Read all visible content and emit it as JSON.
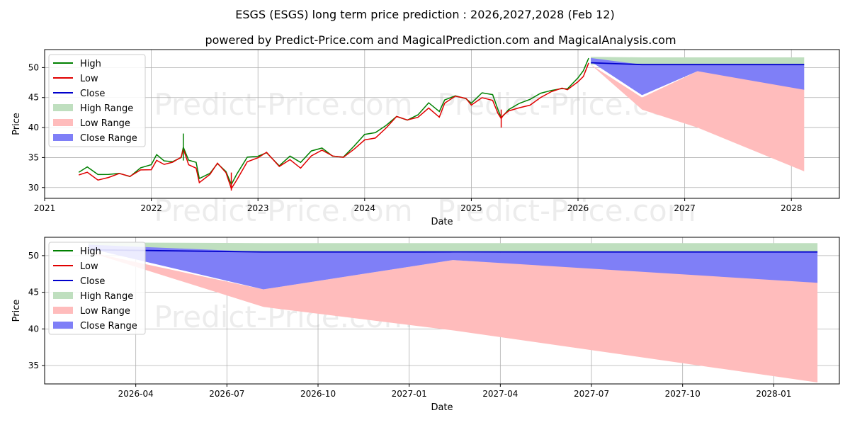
{
  "title": "ESGS (ESGS) long term price prediction : 2026,2027,2028 (Feb 12)",
  "subtitle": "powered by Predict-Price.com and MagicalPrediction.com and MagicalAnalysis.com",
  "watermark": "Predict-Price.com",
  "colors": {
    "high": "#008000",
    "low": "#e00000",
    "close": "#0000cc",
    "high_range": "#bfdfbf",
    "low_range": "#ffbcbc",
    "close_range": "#7f7ff7"
  },
  "legend": [
    "High",
    "Low",
    "Close",
    "High Range",
    "Low Range",
    "Close Range"
  ],
  "chart_data": [
    {
      "type": "line",
      "xlabel": "Date",
      "ylabel": "Price",
      "xlim": [
        2021.0,
        2028.45
      ],
      "ylim": [
        28.2,
        53.0
      ],
      "xticks": [
        2021,
        2022,
        2023,
        2024,
        2025,
        2026,
        2027,
        2028
      ],
      "xtick_labels": [
        "2021",
        "2022",
        "2023",
        "2024",
        "2025",
        "2026",
        "2027",
        "2028"
      ],
      "yticks": [
        30,
        35,
        40,
        45,
        50
      ],
      "ytick_labels": [
        "30",
        "35",
        "40",
        "45",
        "50"
      ],
      "grid": true,
      "legend_position": "top-left",
      "history": {
        "x": [
          2021.32,
          2021.4,
          2021.5,
          2021.6,
          2021.7,
          2021.8,
          2021.9,
          2022.0,
          2022.05,
          2022.12,
          2022.2,
          2022.28,
          2022.3,
          2022.35,
          2022.42,
          2022.45,
          2022.55,
          2022.62,
          2022.7,
          2022.75,
          2022.8,
          2022.9,
          2023.0,
          2023.08,
          2023.2,
          2023.3,
          2023.4,
          2023.5,
          2023.6,
          2023.7,
          2023.8,
          2023.9,
          2024.0,
          2024.1,
          2024.2,
          2024.3,
          2024.4,
          2024.5,
          2024.6,
          2024.7,
          2024.75,
          2024.85,
          2024.95,
          2025.0,
          2025.1,
          2025.2,
          2025.25,
          2025.28,
          2025.3,
          2025.35,
          2025.45,
          2025.55,
          2025.65,
          2025.75,
          2025.85,
          2025.9,
          2026.0,
          2026.05,
          2026.1
        ],
        "close": [
          32.2,
          32.8,
          31.5,
          31.8,
          32.3,
          31.8,
          33.0,
          33.2,
          34.8,
          34.0,
          34.2,
          35.0,
          36.5,
          34.0,
          33.5,
          31.0,
          32.2,
          34.0,
          32.5,
          30.0,
          31.5,
          34.5,
          35.0,
          35.8,
          33.5,
          34.8,
          33.5,
          35.5,
          36.3,
          35.2,
          35.0,
          36.5,
          38.2,
          38.5,
          40.0,
          41.8,
          41.2,
          41.8,
          43.5,
          42.0,
          44.2,
          45.2,
          44.8,
          43.8,
          45.2,
          44.8,
          42.5,
          41.5,
          42.0,
          42.8,
          43.5,
          44.0,
          45.2,
          46.0,
          46.5,
          46.3,
          47.8,
          48.8,
          51.0
        ],
        "high_spikes": [
          [
            2022.3,
            39.0
          ]
        ],
        "low_spikes": [
          [
            2025.28,
            40.0
          ],
          [
            2022.75,
            29.5
          ]
        ]
      },
      "forecast": {
        "x": [
          2026.12,
          2026.6,
          2027.12,
          2028.12
        ],
        "high_range": {
          "upper": [
            51.8,
            51.7,
            51.7,
            51.7
          ],
          "lower": [
            50.5,
            50.5,
            50.5,
            50.5
          ]
        },
        "low_range": {
          "upper": [
            50.5,
            45.0,
            49.4,
            46.5
          ],
          "lower": [
            50.5,
            43.0,
            40.0,
            32.7
          ]
        },
        "close_range": {
          "upper": [
            51.6,
            50.5,
            50.5,
            50.5
          ],
          "lower": [
            51.0,
            45.4,
            49.4,
            46.3
          ]
        },
        "close": [
          50.8,
          50.5,
          50.5,
          50.5
        ]
      }
    },
    {
      "type": "line",
      "xlabel": "Date",
      "ylabel": "Price",
      "xlim": [
        2026.0,
        2028.18
      ],
      "ylim": [
        32.5,
        52.5
      ],
      "xticks": [
        2026.25,
        2026.5,
        2026.75,
        2027.0,
        2027.25,
        2027.5,
        2027.75,
        2028.0
      ],
      "xtick_labels": [
        "2026-04",
        "2026-07",
        "2026-10",
        "2027-01",
        "2027-04",
        "2027-07",
        "2027-10",
        "2028-01"
      ],
      "yticks": [
        35,
        40,
        45,
        50
      ],
      "ytick_labels": [
        "35",
        "40",
        "45",
        "50"
      ],
      "grid": true,
      "legend_position": "top-left",
      "forecast": {
        "x": [
          2026.12,
          2026.6,
          2027.12,
          2028.12
        ],
        "high_range": {
          "upper": [
            51.8,
            51.7,
            51.7,
            51.7
          ],
          "lower": [
            51.0,
            50.5,
            50.5,
            50.5
          ]
        },
        "low_range": {
          "upper": [
            50.5,
            45.4,
            49.4,
            46.5
          ],
          "lower": [
            50.5,
            43.0,
            39.8,
            32.7
          ]
        },
        "close_range": {
          "upper": [
            51.5,
            50.5,
            50.4,
            50.5
          ],
          "lower": [
            51.0,
            45.4,
            49.4,
            46.3
          ]
        },
        "close": [
          50.8,
          50.5,
          50.5,
          50.5
        ]
      }
    }
  ]
}
